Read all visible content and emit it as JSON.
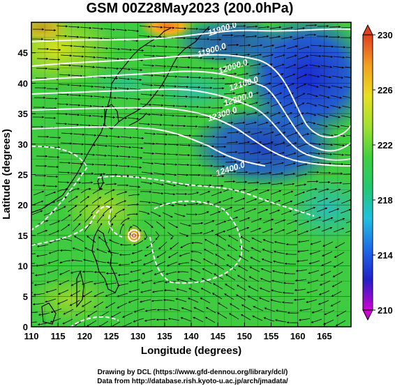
{
  "title": "GSM 00Z28May2023 (200.0hPa)",
  "xlabel": "Longitude (degrees)",
  "ylabel": "Latitude (degrees)",
  "credit_line1": "Drawing by DCL (https://www.gfd-dennou.org/library/dcl/)",
  "credit_line2": "Data from http://database.rish.kyoto-u.ac.jp/arch/jmadata/",
  "colorbar": {
    "ticks": [
      "230",
      "226",
      "222",
      "218",
      "214",
      "210"
    ],
    "range": [
      210,
      230
    ],
    "stops": [
      "#d000d0",
      "#2020c8",
      "#1e6be8",
      "#20c0e0",
      "#22c870",
      "#40d040",
      "#a0e030",
      "#e8e020",
      "#f0a020",
      "#e04020"
    ]
  },
  "chart_data": {
    "type": "heatmap",
    "title": "GSM 00Z28May2023 (200.0hPa)",
    "xlabel": "Longitude (degrees)",
    "ylabel": "Latitude (degrees)",
    "xlim": [
      110,
      170
    ],
    "ylim": [
      0,
      50
    ],
    "x_ticks": [
      110,
      115,
      120,
      125,
      130,
      135,
      140,
      145,
      150,
      155,
      160,
      165
    ],
    "y_ticks": [
      0,
      5,
      10,
      15,
      20,
      25,
      30,
      35,
      40,
      45
    ],
    "grid": true,
    "colorbar_range": [
      210,
      230
    ],
    "colorbar_ticks": [
      230,
      226,
      222,
      218,
      214,
      210
    ],
    "contour_labels": [
      {
        "text": "11900.0",
        "lon": 146.0,
        "lat": 48.5
      },
      {
        "text": "11900.0",
        "lon": 144.0,
        "lat": 45.0
      },
      {
        "text": "12000.0",
        "lon": 148.0,
        "lat": 42.3
      },
      {
        "text": "12100.0",
        "lon": 150.0,
        "lat": 39.5
      },
      {
        "text": "12200.0",
        "lon": 149.0,
        "lat": 37.0
      },
      {
        "text": "12300.0",
        "lon": 146.0,
        "lat": 34.5
      },
      {
        "text": "12400.0",
        "lon": 147.5,
        "lat": 25.5
      }
    ],
    "cyclone_center": {
      "lon": 128.5,
      "lat": 16.5
    }
  }
}
